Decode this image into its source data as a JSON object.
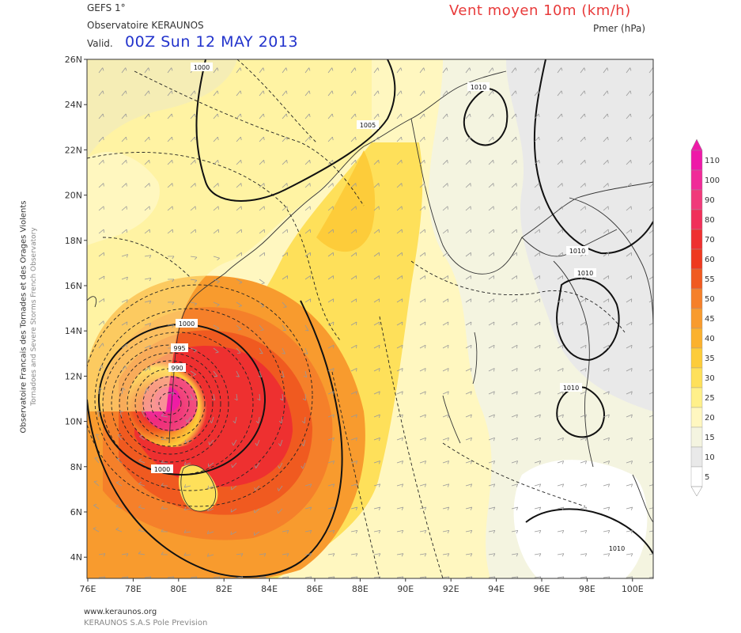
{
  "header": {
    "model": "GEFS 1°",
    "observatory": "Observatoire KERAUNOS",
    "valid_label": "Valid.",
    "valid_date": "00Z Sun 12 MAY 2013",
    "field_title": "Vent moyen 10m (km/h)",
    "field_subtitle": "Pmer (hPa)"
  },
  "side_text": {
    "line1": "Observatoire Francais des Tornades et des Orages Violents",
    "line2": "Tornadoes and Severe Storms French Observatory"
  },
  "footer": {
    "url": "www.keraunos.org",
    "credit": "KERAUNOS S.A.S Pole Prevision"
  },
  "map": {
    "lat_labels": [
      "26N",
      "24N",
      "22N",
      "20N",
      "18N",
      "16N",
      "14N",
      "12N",
      "10N",
      "8N",
      "6N",
      "4N"
    ],
    "lon_labels": [
      "76E",
      "78E",
      "80E",
      "82E",
      "84E",
      "86E",
      "88E",
      "90E",
      "92E",
      "94E",
      "96E",
      "98E",
      "100E"
    ],
    "isobar_labels": [
      {
        "text": "1000"
      },
      {
        "text": "1010"
      },
      {
        "text": "1005"
      },
      {
        "text": "1010"
      },
      {
        "text": "1010"
      },
      {
        "text": "1010"
      },
      {
        "text": "1000"
      },
      {
        "text": "995"
      },
      {
        "text": "990"
      },
      {
        "text": "1000"
      },
      {
        "text": "1010"
      }
    ],
    "cyclone_center": {
      "lat": 11,
      "lon": 79.5,
      "name": "depression"
    }
  },
  "legend": {
    "values": [
      "110",
      "100",
      "90",
      "80",
      "70",
      "60",
      "55",
      "50",
      "45",
      "40",
      "35",
      "30",
      "25",
      "20",
      "15",
      "10",
      "5"
    ],
    "colors": [
      "#ee1aa8",
      "#f02b98",
      "#f03a7a",
      "#f0305a",
      "#ee3030",
      "#ee3a20",
      "#f05a20",
      "#f5802a",
      "#f89b2e",
      "#fbb12e",
      "#fdcc3a",
      "#fee05a",
      "#fff08a",
      "#fff7c0",
      "#f4f4e0",
      "#e9e9e9",
      "#ffffff"
    ],
    "accent_color": "#ee1aa8"
  }
}
